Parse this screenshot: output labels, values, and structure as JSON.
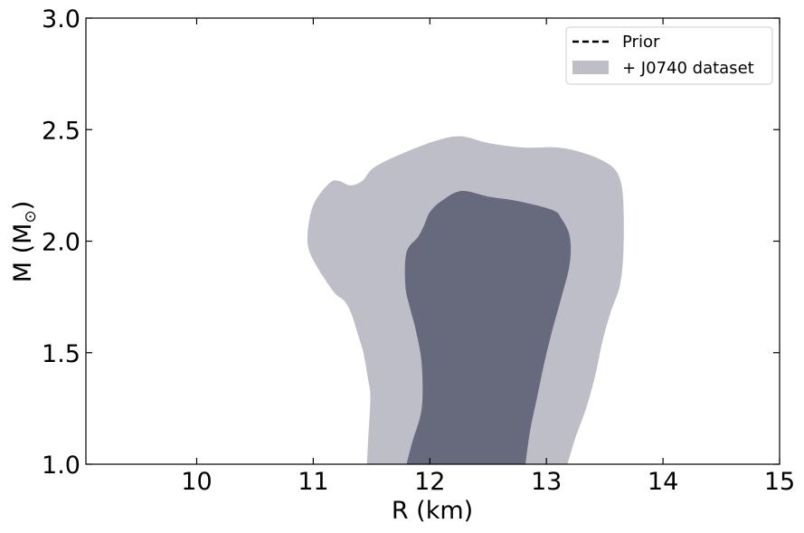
{
  "chart_data": {
    "type": "area",
    "xlabel": "R (km)",
    "ylabel_main": "M (M",
    "ylabel_sub": "⊙",
    "ylabel_close": ")",
    "xlim": [
      9.05,
      15.0
    ],
    "ylim": [
      1.0,
      3.0
    ],
    "xticks": [
      10,
      11,
      12,
      13,
      14,
      15
    ],
    "yticks": [
      1.0,
      1.5,
      2.0,
      2.5,
      3.0
    ],
    "xtick_labels": [
      "10",
      "11",
      "12",
      "13",
      "14",
      "15"
    ],
    "ytick_labels": [
      "1.0",
      "1.5",
      "2.0",
      "2.5",
      "3.0"
    ],
    "grid": false,
    "legend": {
      "placement": "top-right",
      "entries": [
        {
          "label": "Prior",
          "style": "dashed-line",
          "color": "#000000"
        },
        {
          "label": "+ J0740 dataset",
          "style": "filled",
          "color": "#bdbec8"
        }
      ]
    },
    "series": [
      {
        "name": "+ J0740 dataset",
        "region": "outer-contour",
        "color": "#bdbec8",
        "points": [
          [
            11.46,
            1.0
          ],
          [
            11.47,
            1.1
          ],
          [
            11.49,
            1.3
          ],
          [
            11.47,
            1.38
          ],
          [
            11.43,
            1.5
          ],
          [
            11.39,
            1.57
          ],
          [
            11.33,
            1.67
          ],
          [
            11.27,
            1.73
          ],
          [
            11.18,
            1.77
          ],
          [
            11.05,
            1.87
          ],
          [
            10.97,
            1.95
          ],
          [
            10.95,
            2.02
          ],
          [
            10.98,
            2.13
          ],
          [
            11.04,
            2.2
          ],
          [
            11.15,
            2.265
          ],
          [
            11.22,
            2.27
          ],
          [
            11.32,
            2.25
          ],
          [
            11.42,
            2.27
          ],
          [
            11.52,
            2.33
          ],
          [
            11.75,
            2.39
          ],
          [
            12.05,
            2.45
          ],
          [
            12.27,
            2.47
          ],
          [
            12.5,
            2.44
          ],
          [
            12.8,
            2.42
          ],
          [
            13.1,
            2.42
          ],
          [
            13.35,
            2.39
          ],
          [
            13.55,
            2.34
          ],
          [
            13.63,
            2.28
          ],
          [
            13.66,
            2.17
          ],
          [
            13.66,
            1.95
          ],
          [
            13.63,
            1.8
          ],
          [
            13.55,
            1.68
          ],
          [
            13.48,
            1.55
          ],
          [
            13.42,
            1.4
          ],
          [
            13.34,
            1.25
          ],
          [
            13.25,
            1.12
          ],
          [
            13.18,
            1.0
          ]
        ]
      },
      {
        "name": "+ J0740 dataset",
        "region": "inner-contour",
        "color": "#676a7d",
        "points": [
          [
            11.8,
            1.0
          ],
          [
            11.85,
            1.1
          ],
          [
            11.93,
            1.25
          ],
          [
            11.93,
            1.45
          ],
          [
            11.88,
            1.6
          ],
          [
            11.83,
            1.7
          ],
          [
            11.79,
            1.8
          ],
          [
            11.8,
            1.95
          ],
          [
            11.9,
            2.02
          ],
          [
            11.95,
            2.07
          ],
          [
            12.0,
            2.13
          ],
          [
            12.1,
            2.18
          ],
          [
            12.27,
            2.225
          ],
          [
            12.5,
            2.2
          ],
          [
            12.75,
            2.18
          ],
          [
            13.05,
            2.14
          ],
          [
            13.13,
            2.1
          ],
          [
            13.2,
            2.02
          ],
          [
            13.2,
            1.9
          ],
          [
            13.13,
            1.75
          ],
          [
            13.05,
            1.6
          ],
          [
            12.98,
            1.45
          ],
          [
            12.92,
            1.3
          ],
          [
            12.86,
            1.15
          ],
          [
            12.82,
            1.0
          ]
        ]
      }
    ]
  }
}
